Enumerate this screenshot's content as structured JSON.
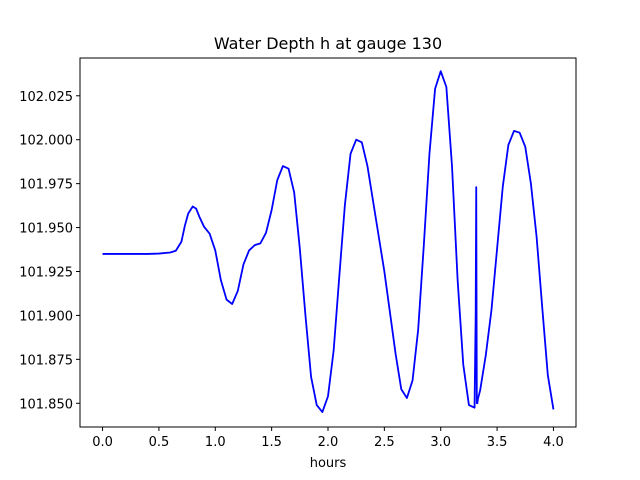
{
  "chart_data": {
    "type": "line",
    "title": "Water Depth h at gauge 130",
    "xlabel": "hours",
    "ylabel": "",
    "xlim": [
      -0.2,
      4.2
    ],
    "ylim": [
      101.8365,
      102.0465
    ],
    "xticks": [
      "0.0",
      "0.5",
      "1.0",
      "1.5",
      "2.0",
      "2.5",
      "3.0",
      "3.5",
      "4.0"
    ],
    "yticks": [
      "101.850",
      "101.875",
      "101.900",
      "101.925",
      "101.950",
      "101.975",
      "102.000",
      "102.025"
    ],
    "grid": false,
    "legend": "none",
    "series": [
      {
        "color": "#0000ff",
        "x": [
          0.0,
          0.2,
          0.4,
          0.5,
          0.6,
          0.65,
          0.7,
          0.73,
          0.76,
          0.8,
          0.83,
          0.86,
          0.9,
          0.95,
          1.0,
          1.05,
          1.1,
          1.15,
          1.2,
          1.25,
          1.3,
          1.35,
          1.4,
          1.45,
          1.5,
          1.55,
          1.6,
          1.65,
          1.7,
          1.75,
          1.8,
          1.85,
          1.9,
          1.95,
          2.0,
          2.05,
          2.1,
          2.15,
          2.2,
          2.25,
          2.3,
          2.35,
          2.4,
          2.5,
          2.6,
          2.65,
          2.7,
          2.75,
          2.8,
          2.85,
          2.9,
          2.95,
          3.0,
          3.05,
          3.1,
          3.15,
          3.2,
          3.25,
          3.3,
          3.31,
          3.315,
          3.32,
          3.325,
          3.33,
          3.35,
          3.4,
          3.45,
          3.5,
          3.55,
          3.6,
          3.65,
          3.7,
          3.75,
          3.8,
          3.85,
          3.9,
          3.95,
          4.0
        ],
        "y": [
          101.935,
          101.935,
          101.935,
          101.9352,
          101.9358,
          101.9368,
          101.942,
          101.951,
          101.958,
          101.962,
          101.9608,
          101.956,
          101.9505,
          101.9465,
          101.937,
          101.92,
          101.909,
          101.9065,
          101.914,
          101.929,
          101.937,
          101.94,
          101.941,
          101.947,
          101.96,
          101.977,
          101.985,
          101.9835,
          101.97,
          101.938,
          101.9,
          101.865,
          101.849,
          101.845,
          101.854,
          101.88,
          101.922,
          101.963,
          101.992,
          102.0,
          101.9985,
          101.985,
          101.965,
          101.925,
          101.878,
          101.858,
          101.853,
          101.863,
          101.892,
          101.94,
          101.992,
          102.029,
          102.039,
          102.03,
          101.985,
          101.92,
          101.872,
          101.849,
          101.8475,
          101.9,
          101.973,
          101.85,
          101.85,
          101.8525,
          101.8575,
          101.8775,
          101.903,
          101.938,
          101.973,
          101.997,
          102.005,
          102.004,
          101.996,
          101.975,
          101.945,
          101.905,
          101.866,
          101.8465
        ]
      }
    ]
  }
}
